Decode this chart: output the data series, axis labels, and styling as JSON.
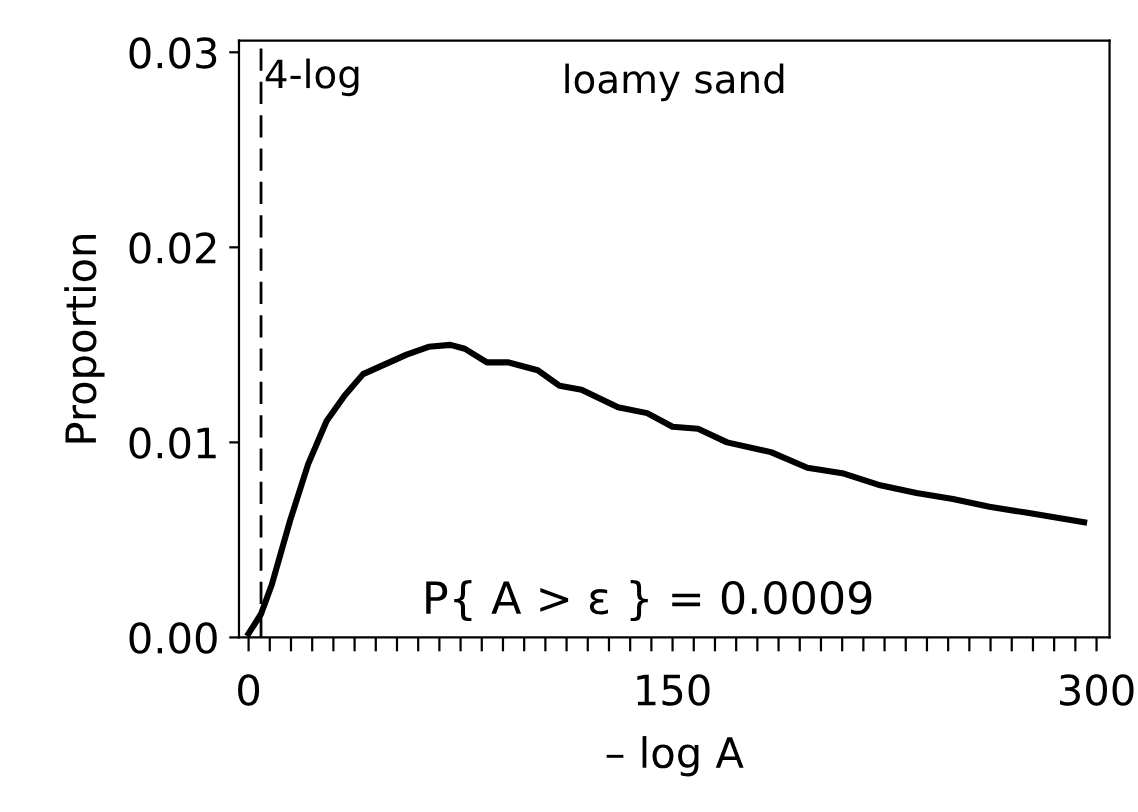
{
  "chart_data": {
    "type": "line",
    "xlabel": "– log A",
    "ylabel": "Proportion",
    "x": [
      0,
      4.4,
      8.2,
      14.7,
      21.1,
      27.6,
      34,
      40.5,
      48.2,
      55.9,
      63.7,
      71.4,
      76.5,
      84.3,
      92,
      102.3,
      110,
      117.8,
      130.7,
      141,
      150,
      159,
      169.3,
      184.8,
      197.7,
      210.6,
      223.5,
      236.3,
      249.2,
      262.1,
      275,
      295.6
    ],
    "series": [
      {
        "color": "#000000",
        "values": [
          0.0002,
          0.0012,
          0.0027,
          0.006,
          0.0089,
          0.0111,
          0.0124,
          0.0135,
          0.014,
          0.0145,
          0.0149,
          0.015,
          0.0148,
          0.0141,
          0.0141,
          0.0137,
          0.0129,
          0.0127,
          0.0118,
          0.0115,
          0.0108,
          0.0107,
          0.01,
          0.0095,
          0.0087,
          0.0084,
          0.0078,
          0.0074,
          0.0071,
          0.0067,
          0.0064,
          0.0059
        ]
      }
    ],
    "xlim": [
      -3.4,
      304.6
    ],
    "ylim": [
      0,
      0.0306
    ],
    "xticks": [
      0,
      {
        "value": 7.5,
        "label": null
      },
      {
        "value": 15,
        "label": null
      },
      {
        "value": 22.5,
        "label": null
      },
      {
        "value": 30,
        "label": null
      },
      {
        "value": 37.5,
        "label": null
      },
      {
        "value": 45,
        "label": null
      },
      {
        "value": 52.5,
        "label": null
      },
      {
        "value": 60,
        "label": null
      },
      {
        "value": 67.5,
        "label": null
      },
      {
        "value": 75,
        "label": null
      },
      {
        "value": 82.5,
        "label": null
      },
      {
        "value": 90,
        "label": null
      },
      {
        "value": 97.5,
        "label": null
      },
      {
        "value": 105,
        "label": null
      },
      {
        "value": 112.5,
        "label": null
      },
      {
        "value": 120,
        "label": null
      },
      {
        "value": 127.5,
        "label": null
      },
      {
        "value": 135,
        "label": null
      },
      {
        "value": 142.5,
        "label": null
      },
      150,
      {
        "value": 157.5,
        "label": null
      },
      {
        "value": 165,
        "label": null
      },
      {
        "value": 172.5,
        "label": null
      },
      {
        "value": 180,
        "label": null
      },
      {
        "value": 187.5,
        "label": null
      },
      {
        "value": 195,
        "label": null
      },
      {
        "value": 202.5,
        "label": null
      },
      {
        "value": 210,
        "label": null
      },
      {
        "value": 217.5,
        "label": null
      },
      {
        "value": 225,
        "label": null
      },
      {
        "value": 232.5,
        "label": null
      },
      {
        "value": 240,
        "label": null
      },
      {
        "value": 247.5,
        "label": null
      },
      {
        "value": 255,
        "label": null
      },
      {
        "value": 262.5,
        "label": null
      },
      {
        "value": 270,
        "label": null
      },
      {
        "value": 277.5,
        "label": null
      },
      {
        "value": 285,
        "label": null
      },
      {
        "value": 292.5,
        "label": null
      },
      300
    ],
    "yticks": [
      {
        "value": 0,
        "label": "0.00"
      },
      {
        "value": 0.01,
        "label": "0.01"
      },
      {
        "value": 0.02,
        "label": "0.02"
      },
      {
        "value": 0.03,
        "label": "0.03"
      }
    ],
    "ref_lines": [
      {
        "axis": "x",
        "value": 4.4,
        "label": "4-log",
        "color": "#000000",
        "line_style": "dashed"
      }
    ],
    "annotations": [
      "loamy sand",
      "P{ A > ε } = 0.0009"
    ],
    "grid": false,
    "legend": false,
    "marker": "none",
    "line_style": "solid"
  }
}
